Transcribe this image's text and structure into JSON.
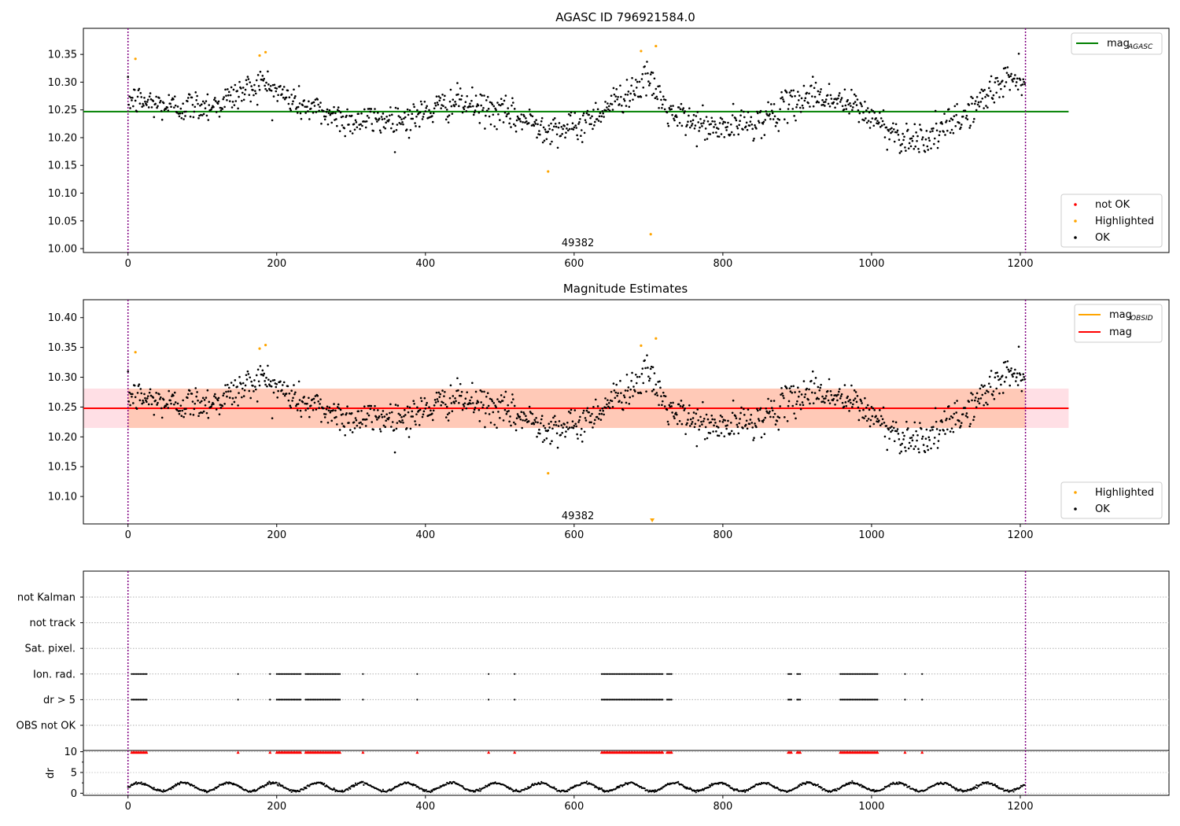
{
  "chart_data": [
    {
      "type": "scatter",
      "title": "AGASC ID 796921584.0",
      "xlim": [
        -60,
        1400
      ],
      "ylim": [
        9.993,
        10.397
      ],
      "xticks": [
        0,
        200,
        400,
        600,
        800,
        1000,
        1200
      ],
      "yticks": [
        10.0,
        10.05,
        10.1,
        10.15,
        10.2,
        10.25,
        10.3,
        10.35
      ],
      "ytick_labels": [
        "10.00",
        "10.05",
        "10.10",
        "10.15",
        "10.20",
        "10.25",
        "10.30",
        "10.35"
      ],
      "hline": {
        "y": 10.247,
        "x": [
          -60,
          1265
        ],
        "color": "#008000",
        "label": "mag",
        "label_sub": "AGASC"
      },
      "vlines": [
        0,
        1207
      ],
      "annotation": {
        "text": "49382",
        "x": 605,
        "y": 10.004
      },
      "legend_upper": [
        {
          "label": "mag",
          "label_sub": "AGASC",
          "kind": "line",
          "color": "#008000"
        }
      ],
      "legend_lower": [
        {
          "label": "not OK",
          "kind": "dot",
          "color": "#ff0000"
        },
        {
          "label": "Highlighted",
          "kind": "dot",
          "color": "#ffa500"
        },
        {
          "label": "OK",
          "kind": "dot",
          "color": "#000000"
        }
      ],
      "series": [
        {
          "name": "Highlighted",
          "color": "#ffa500",
          "points": [
            [
              10,
              10.342
            ],
            [
              177,
              10.348
            ],
            [
              185,
              10.354
            ],
            [
              565,
              10.139
            ],
            [
              690,
              10.356
            ],
            [
              703,
              10.026
            ],
            [
              710,
              10.365
            ]
          ]
        }
      ],
      "ok_series": {
        "name": "OK",
        "color": "#000000",
        "n": 1207,
        "x_start": 0,
        "x_end": 1206,
        "trend": [
          [
            0,
            10.27
          ],
          [
            60,
            10.255
          ],
          [
            120,
            10.26
          ],
          [
            180,
            10.3
          ],
          [
            230,
            10.26
          ],
          [
            300,
            10.23
          ],
          [
            380,
            10.235
          ],
          [
            440,
            10.265
          ],
          [
            500,
            10.245
          ],
          [
            560,
            10.22
          ],
          [
            600,
            10.215
          ],
          [
            660,
            10.27
          ],
          [
            700,
            10.305
          ],
          [
            730,
            10.24
          ],
          [
            790,
            10.215
          ],
          [
            850,
            10.23
          ],
          [
            920,
            10.28
          ],
          [
            980,
            10.255
          ],
          [
            1040,
            10.2
          ],
          [
            1080,
            10.2
          ],
          [
            1130,
            10.245
          ],
          [
            1180,
            10.305
          ],
          [
            1206,
            10.31
          ]
        ],
        "spread": 0.019
      }
    },
    {
      "type": "scatter",
      "title": "Magnitude Estimates",
      "xlim": [
        -60,
        1400
      ],
      "ylim": [
        10.054,
        10.43
      ],
      "xticks": [
        0,
        200,
        400,
        600,
        800,
        1000,
        1200
      ],
      "yticks": [
        10.1,
        10.15,
        10.2,
        10.25,
        10.3,
        10.35,
        10.4
      ],
      "ytick_labels": [
        "10.10",
        "10.15",
        "10.20",
        "10.25",
        "10.30",
        "10.35",
        "10.40"
      ],
      "hline": {
        "y": 10.248,
        "x": [
          -60,
          1265
        ],
        "color": "#ff0000",
        "label": "mag"
      },
      "band": {
        "y": [
          10.215,
          10.281
        ],
        "x": [
          -60,
          1265
        ],
        "color": "#ffc0cb"
      },
      "band_obs": {
        "y": [
          10.215,
          10.281
        ],
        "x": [
          0,
          1207
        ],
        "color": "#ffa060"
      },
      "vlines": [
        0,
        1207
      ],
      "annotation": {
        "text": "49382",
        "x": 605,
        "y": 10.062
      },
      "offscale_marker": {
        "x": 705,
        "color": "#ffa500"
      },
      "legend_upper": [
        {
          "label": "mag",
          "label_sub": "OBSID",
          "kind": "line",
          "color": "#ffa500"
        },
        {
          "label": "mag",
          "kind": "line",
          "color": "#ff0000"
        }
      ],
      "legend_lower": [
        {
          "label": "Highlighted",
          "kind": "dot",
          "color": "#ffa500"
        },
        {
          "label": "OK",
          "kind": "dot",
          "color": "#000000"
        }
      ],
      "series": [
        {
          "name": "Highlighted",
          "color": "#ffa500",
          "points": [
            [
              10,
              10.342
            ],
            [
              177,
              10.348
            ],
            [
              185,
              10.354
            ],
            [
              565,
              10.139
            ],
            [
              690,
              10.353
            ],
            [
              710,
              10.365
            ]
          ]
        }
      ]
    },
    {
      "type": "scatter",
      "title": "",
      "xlim": [
        -60,
        1400
      ],
      "xticks": [
        0,
        200,
        400,
        600,
        800,
        1000,
        1200
      ],
      "flag_categories": [
        "not Kalman",
        "not track",
        "Sat. pixel.",
        "Ion. rad.",
        "dr > 5",
        "OBS not OK"
      ],
      "flag_points": {
        "Ion. rad.": [
          [
            5,
            25
          ],
          [
            148,
            148
          ],
          [
            191,
            191
          ],
          [
            200,
            232
          ],
          [
            239,
            285
          ],
          [
            316,
            316
          ],
          [
            389,
            389
          ],
          [
            485,
            485
          ],
          [
            520,
            520
          ],
          [
            637,
            720
          ],
          [
            725,
            732
          ],
          [
            888,
            892
          ],
          [
            900,
            904
          ],
          [
            958,
            1008
          ],
          [
            1045,
            1045
          ],
          [
            1068,
            1068
          ]
        ],
        "dr > 5": [
          [
            5,
            25
          ],
          [
            148,
            148
          ],
          [
            191,
            191
          ],
          [
            200,
            232
          ],
          [
            239,
            285
          ],
          [
            316,
            316
          ],
          [
            389,
            389
          ],
          [
            485,
            485
          ],
          [
            520,
            520
          ],
          [
            637,
            720
          ],
          [
            725,
            732
          ],
          [
            888,
            892
          ],
          [
            900,
            904
          ],
          [
            958,
            1008
          ],
          [
            1045,
            1045
          ],
          [
            1068,
            1068
          ]
        ]
      },
      "vlines": [
        0,
        1207
      ]
    },
    {
      "type": "scatter",
      "title": "",
      "ylabel": "dr",
      "xlim": [
        -60,
        1400
      ],
      "ylim": [
        -0.5,
        10.3
      ],
      "xticks": [
        0,
        200,
        400,
        600,
        800,
        1000,
        1200
      ],
      "yticks": [
        0,
        5,
        10
      ],
      "ytick_labels": [
        "0",
        "5",
        "10"
      ],
      "series": [
        {
          "name": "dr",
          "color": "#000000",
          "n": 1207,
          "min": 0.5,
          "max": 2.5,
          "period": 60
        },
        {
          "name": "dr > 5",
          "color": "#ff0000",
          "y": 9.9
        }
      ],
      "vlines": [
        0,
        1207
      ]
    }
  ]
}
